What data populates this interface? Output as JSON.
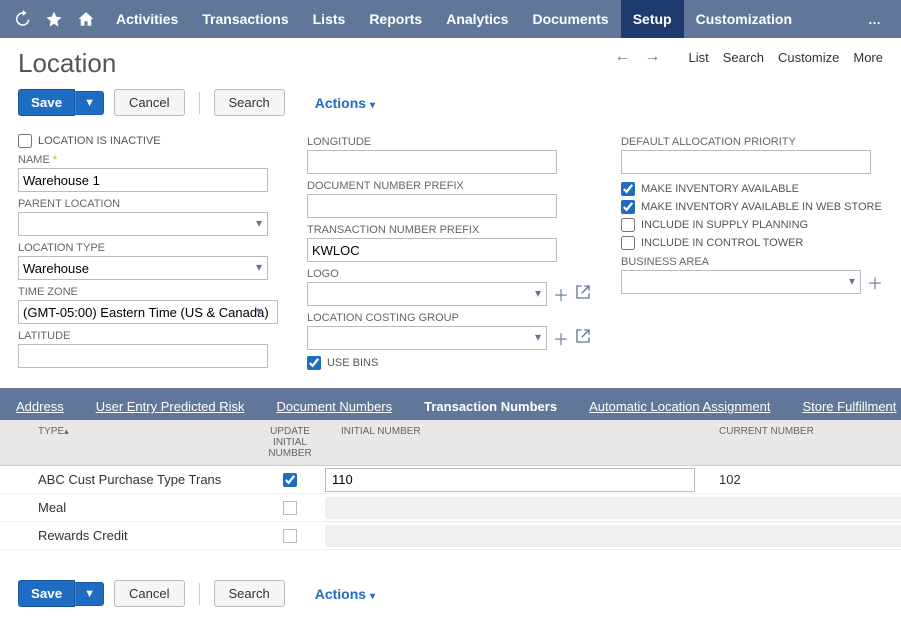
{
  "nav": {
    "items": [
      "Activities",
      "Transactions",
      "Lists",
      "Reports",
      "Analytics",
      "Documents",
      "Setup",
      "Customization"
    ],
    "active_index": 6
  },
  "subheader_links": [
    "List",
    "Search",
    "Customize",
    "More"
  ],
  "page_title": "Location",
  "buttons": {
    "save": "Save",
    "cancel": "Cancel",
    "search": "Search",
    "actions": "Actions"
  },
  "fields_left": {
    "inactive_label": "LOCATION IS INACTIVE",
    "inactive_checked": false,
    "name_label": "NAME",
    "name_value": "Warehouse 1",
    "parent_label": "PARENT LOCATION",
    "parent_value": "",
    "type_label": "LOCATION TYPE",
    "type_value": "Warehouse",
    "tz_label": "TIME ZONE",
    "tz_value": "(GMT-05:00) Eastern Time (US & Canada)",
    "lat_label": "LATITUDE",
    "lat_value": ""
  },
  "fields_mid": {
    "lon_label": "LONGITUDE",
    "lon_value": "",
    "docprefix_label": "DOCUMENT NUMBER PREFIX",
    "docprefix_value": "",
    "tranprefix_label": "TRANSACTION NUMBER PREFIX",
    "tranprefix_value": "KWLOC",
    "logo_label": "LOGO",
    "costing_label": "LOCATION COSTING GROUP",
    "usebins_label": "USE BINS",
    "usebins_checked": true
  },
  "fields_right": {
    "alloc_label": "DEFAULT ALLOCATION PRIORITY",
    "alloc_value": "",
    "inv_avail_label": "MAKE INVENTORY AVAILABLE",
    "inv_avail_checked": true,
    "inv_web_label": "MAKE INVENTORY AVAILABLE IN WEB STORE",
    "inv_web_checked": true,
    "supply_label": "INCLUDE IN SUPPLY PLANNING",
    "supply_checked": false,
    "tower_label": "INCLUDE IN CONTROL TOWER",
    "tower_checked": false,
    "bizarea_label": "BUSINESS AREA",
    "bizarea_value": ""
  },
  "tabs": [
    "Address",
    "User Entry Predicted Risk",
    "Document Numbers",
    "Transaction Numbers",
    "Automatic Location Assignment",
    "Store Fulfillment"
  ],
  "tabs_underline": [
    true,
    true,
    true,
    false,
    true,
    true
  ],
  "active_tab": 3,
  "grid": {
    "headers": {
      "type": "TYPE",
      "update": "UPDATE INITIAL NUMBER",
      "initial": "INITIAL NUMBER",
      "current": "CURRENT NUMBER"
    },
    "rows": [
      {
        "type": "ABC Cust Purchase Type Trans",
        "update_checked": true,
        "initial": "110",
        "current": "102",
        "editable": true
      },
      {
        "type": "Meal",
        "update_checked": false,
        "initial": "",
        "current": "",
        "editable": false
      },
      {
        "type": "Rewards Credit",
        "update_checked": false,
        "initial": "",
        "current": "",
        "editable": false
      }
    ]
  }
}
